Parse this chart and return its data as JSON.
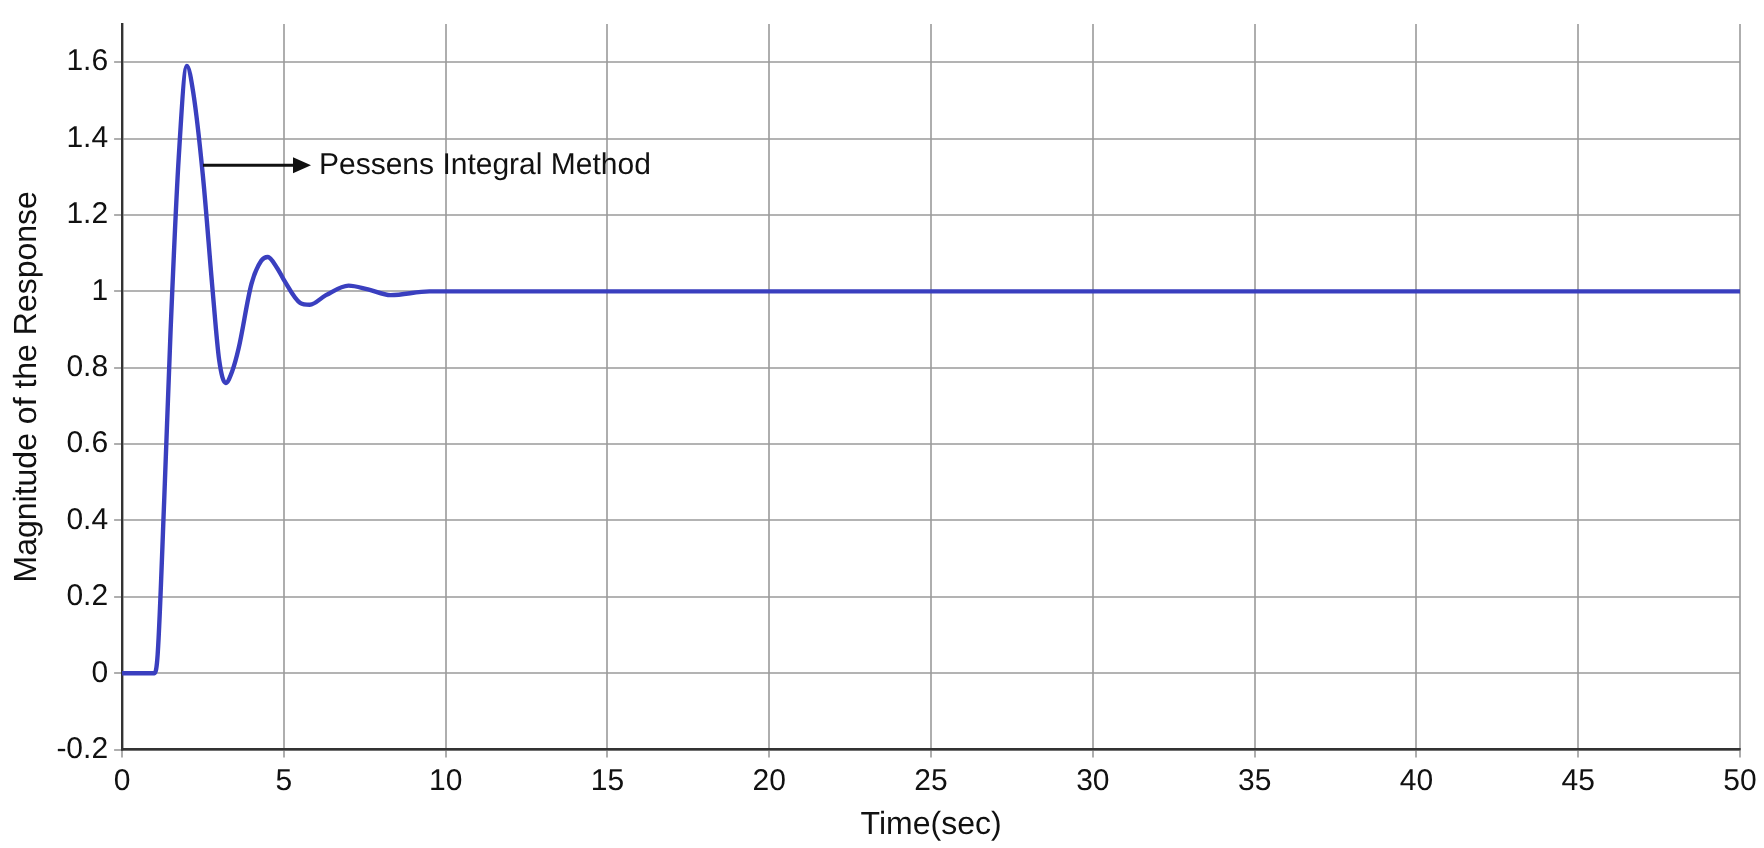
{
  "chart_data": {
    "type": "line",
    "xlabel": "Time(sec)",
    "ylabel": "Magnitude of the Response",
    "series": [
      {
        "color": "#3a3fbf",
        "x": [
          0,
          1.0,
          1.1,
          1.3,
          1.5,
          1.75,
          2.0,
          2.2,
          2.5,
          2.8,
          3.0,
          3.2,
          3.4,
          3.6,
          4.0,
          4.3,
          4.5,
          4.8,
          5.0,
          5.5,
          5.8,
          6.3,
          7.0,
          7.6,
          8.3,
          9.5,
          12,
          50
        ],
        "values": [
          0,
          0,
          0.05,
          0.45,
          0.9,
          1.35,
          1.59,
          1.52,
          1.3,
          1.0,
          0.82,
          0.76,
          0.79,
          0.85,
          1.02,
          1.08,
          1.09,
          1.06,
          1.03,
          0.97,
          0.965,
          0.99,
          1.015,
          1.005,
          0.99,
          1.0,
          1.0,
          1.0
        ]
      }
    ],
    "annotations": [
      {
        "text": "Pessens Integral Method",
        "x": 2.5,
        "y": 1.33
      }
    ],
    "xlim": [
      0,
      50
    ],
    "xticks": [
      0,
      5,
      10,
      15,
      20,
      25,
      30,
      35,
      40,
      45,
      50
    ],
    "ylim": [
      -0.2,
      1.7
    ],
    "yticks": [
      -0.2,
      0,
      0.2,
      0.4,
      0.6,
      0.8,
      1,
      1.2,
      1.4,
      1.6
    ],
    "grid": true,
    "legend": false,
    "marker": "none",
    "line_style": "solid"
  }
}
